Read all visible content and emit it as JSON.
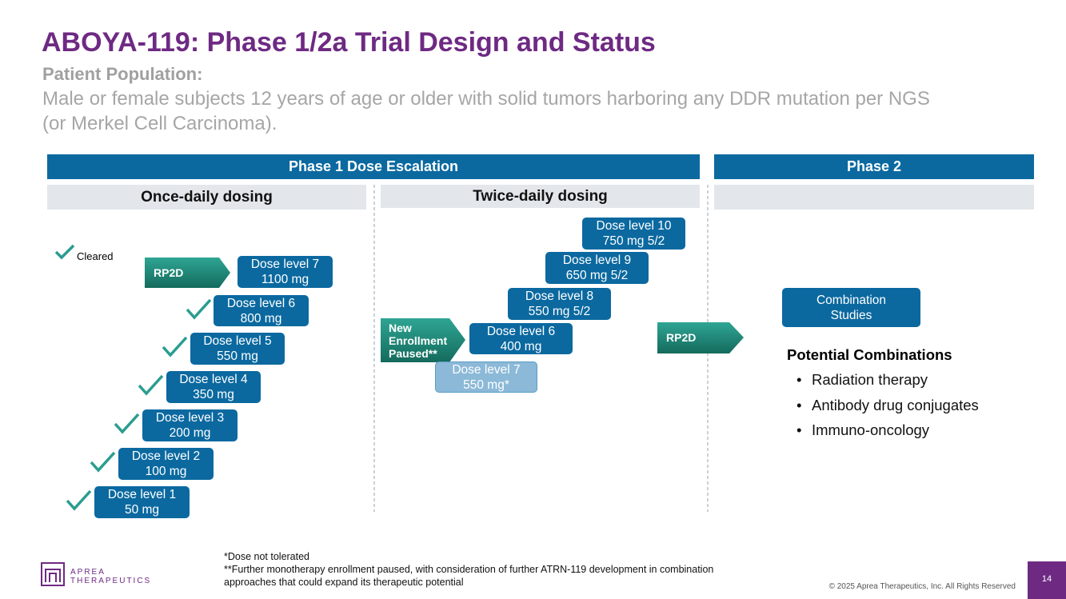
{
  "header": {
    "title": "ABOYA-119: Phase 1/2a Trial Design and Status",
    "subtitle": "Patient Population:",
    "description": [
      "Male or female subjects 12 years of age or older with solid tumors harboring any DDR mutation per NGS",
      "(or Merkel Cell Carcinoma)."
    ]
  },
  "phases": [
    "Phase 1 Dose Escalation",
    "Phase 2"
  ],
  "columns": [
    "Once-daily dosing",
    "Twice-daily dosing"
  ],
  "legend": "Cleared",
  "once_daily": {
    "rp2d": "RP2D",
    "doses": [
      {
        "level": "Dose level 7",
        "dose": "1100 mg"
      },
      {
        "level": "Dose level 6",
        "dose": "800 mg"
      },
      {
        "level": "Dose level 5",
        "dose": "550 mg"
      },
      {
        "level": "Dose level 4",
        "dose": "350 mg"
      },
      {
        "level": "Dose level 3",
        "dose": "200 mg"
      },
      {
        "level": "Dose level 2",
        "dose": "100 mg"
      },
      {
        "level": "Dose level 1",
        "dose": "50 mg"
      }
    ]
  },
  "twice_daily": {
    "paused": [
      "New",
      "Enrollment",
      "Paused**"
    ],
    "rp2d": "RP2D",
    "doses": [
      {
        "level": "Dose level 10",
        "dose": "750 mg 5/2"
      },
      {
        "level": "Dose level 9",
        "dose": "650 mg 5/2"
      },
      {
        "level": "Dose level 8",
        "dose": "550 mg 5/2"
      },
      {
        "level": "Dose level 6",
        "dose": "400 mg"
      },
      {
        "level": "Dose level 7",
        "dose": "550 mg*"
      }
    ]
  },
  "phase2": {
    "box": [
      "Combination",
      "Studies"
    ],
    "heading": "Potential Combinations",
    "items": [
      "Radiation therapy",
      "Antibody drug conjugates",
      "Immuno-oncology"
    ]
  },
  "footnotes": [
    "*Dose not tolerated",
    "**Further monotherapy enrollment paused, with consideration of further ATRN-119 development in combination",
    "approaches that could expand its therapeutic potential"
  ],
  "footer": {
    "logo": [
      "APREA",
      "THERAPEUTICS"
    ],
    "copyright": "© 2025 Aprea Therapeutics, Inc. All Rights Reserved",
    "page": "14"
  }
}
